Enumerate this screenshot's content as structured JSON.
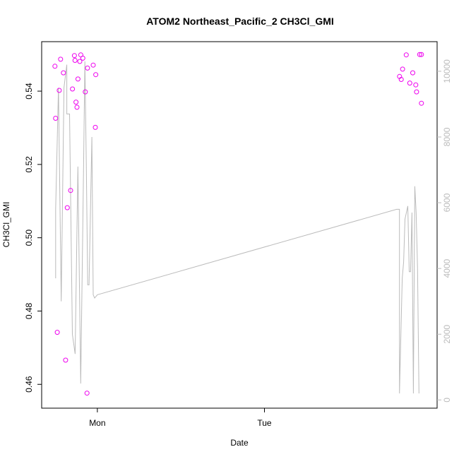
{
  "chart_data": {
    "type": "scatter",
    "title": "ATOM2 Northeast_Pacific_2 CH3Cl_GMI",
    "xlabel": "Date",
    "ylabel": "CH3Cl_GMI",
    "x_ticks": [
      {
        "label": "Mon",
        "value": 0.0
      },
      {
        "label": "Tue",
        "value": 1.0
      }
    ],
    "xlim": [
      -0.3333,
      2.0333
    ],
    "ylim": [
      0.4535,
      0.5535
    ],
    "y_ticks": [
      0.46,
      0.48,
      0.5,
      0.52,
      0.54
    ],
    "y2lim": [
      -250,
      10900
    ],
    "y2_ticks": [
      0,
      2000,
      4000,
      6000,
      8000,
      10000
    ],
    "grid": false,
    "colors": {
      "points": "#ee00ee",
      "line": "#bbbbbb",
      "axis": "#000000",
      "axis2": "#bbbbbb"
    },
    "series": [
      {
        "type": "scatter",
        "axis": "left",
        "x": [
          -0.254,
          -0.25,
          -0.24,
          -0.228,
          -0.22,
          -0.203,
          -0.19,
          -0.18,
          -0.16,
          -0.149,
          -0.137,
          -0.134,
          -0.128,
          -0.122,
          -0.116,
          -0.105,
          -0.099,
          -0.087,
          -0.072,
          -0.062,
          -0.059,
          -0.025,
          -0.012,
          -0.0096,
          1.8086,
          1.8186,
          1.8268,
          1.8486,
          1.8696,
          1.8873,
          1.9057,
          1.9105,
          1.9291,
          1.9395,
          1.9395
        ],
        "y": [
          0.5468,
          0.5326,
          0.4742,
          0.5402,
          0.5487,
          0.545,
          0.4666,
          0.5082,
          0.5129,
          0.5406,
          0.5497,
          0.5484,
          0.537,
          0.5356,
          0.5433,
          0.5481,
          0.5499,
          0.549,
          0.5398,
          0.4576,
          0.5463,
          0.5471,
          0.5301,
          0.5445,
          0.544,
          0.5432,
          0.546,
          0.5499,
          0.5422,
          0.545,
          0.5417,
          0.5398,
          0.55,
          0.5367,
          0.55
        ]
      },
      {
        "type": "line",
        "axis": "right",
        "x": [
          -0.2496,
          -0.2496,
          -0.2329,
          -0.2329,
          -0.2163,
          -0.1996,
          -0.1829,
          -0.1829,
          -0.1663,
          -0.1496,
          -0.1329,
          -0.1163,
          -0.0996,
          -0.0829,
          -0.0746,
          -0.0663,
          -0.0579,
          -0.0496,
          -0.0329,
          -0.0246,
          -0.0163,
          0.0,
          1.7912,
          1.8079,
          1.8079,
          1.8246,
          1.8329,
          1.8412,
          1.8579,
          1.8662,
          1.8746,
          1.8829,
          1.8912,
          1.8996,
          1.9079,
          1.9162,
          1.9246,
          1.9246
        ],
        "y": [
          3700,
          5800,
          9500,
          9500,
          3000,
          9500,
          10200,
          8700,
          8700,
          2000,
          1400,
          7100,
          500,
          7000,
          10300,
          7200,
          3500,
          3500,
          8000,
          3200,
          3100,
          3200,
          5800,
          5800,
          200,
          3700,
          4200,
          5500,
          5900,
          3900,
          3900,
          5700,
          200,
          6500,
          5700,
          4000,
          200,
          200
        ]
      }
    ]
  }
}
